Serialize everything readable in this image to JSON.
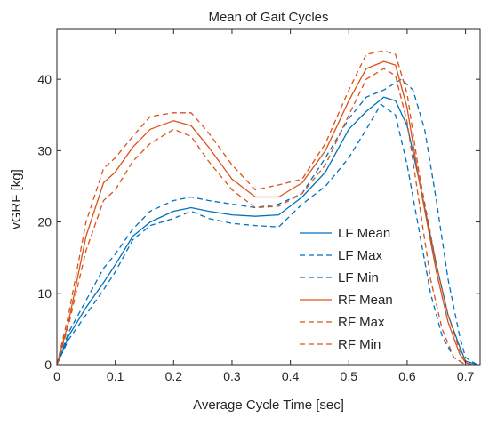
{
  "chart_data": {
    "type": "line",
    "title": "Mean of Gait Cycles",
    "xlabel": "Average Cycle Time [sec]",
    "ylabel": "vGRF [kg]",
    "xlim": [
      0,
      0.725
    ],
    "ylim": [
      0,
      47
    ],
    "xticks": [
      0,
      0.1,
      0.2,
      0.3,
      0.4,
      0.5,
      0.6,
      0.7
    ],
    "xtick_labels": [
      "0",
      "0.1",
      "0.2",
      "0.3",
      "0.4",
      "0.5",
      "0.6",
      "0.7"
    ],
    "yticks": [
      0,
      10,
      20,
      30,
      40
    ],
    "ytick_labels": [
      "0",
      "10",
      "20",
      "30",
      "40"
    ],
    "grid": false,
    "legend_position": "bottom-right",
    "series": [
      {
        "name": "LF Mean",
        "color": "#0072BD",
        "dash": "solid",
        "x": [
          0,
          0.02,
          0.05,
          0.08,
          0.1,
          0.13,
          0.16,
          0.2,
          0.23,
          0.26,
          0.3,
          0.34,
          0.38,
          0.42,
          0.46,
          0.5,
          0.53,
          0.56,
          0.58,
          0.6,
          0.62,
          0.65,
          0.67,
          0.69,
          0.7,
          0.72
        ],
        "y": [
          0,
          4,
          8,
          11.5,
          14,
          18,
          20,
          21.5,
          22,
          21.5,
          21,
          20.8,
          21,
          23.5,
          27,
          33,
          35.5,
          37.5,
          37,
          33.5,
          26,
          14,
          7,
          2.5,
          0.5,
          0
        ]
      },
      {
        "name": "LF Max",
        "color": "#0072BD",
        "dash": "dashed",
        "x": [
          0,
          0.02,
          0.05,
          0.08,
          0.1,
          0.13,
          0.16,
          0.2,
          0.23,
          0.26,
          0.3,
          0.34,
          0.38,
          0.42,
          0.46,
          0.5,
          0.53,
          0.56,
          0.59,
          0.61,
          0.63,
          0.65,
          0.67,
          0.69,
          0.7,
          0.72
        ],
        "y": [
          0,
          4.5,
          9,
          13.5,
          15.5,
          19,
          21.5,
          23,
          23.5,
          23,
          22.5,
          22,
          22.5,
          24,
          29,
          34.5,
          37.5,
          38.5,
          40,
          38.5,
          33,
          23,
          12,
          4,
          1,
          0
        ]
      },
      {
        "name": "LF Min",
        "color": "#0072BD",
        "dash": "dashed",
        "x": [
          0,
          0.02,
          0.05,
          0.08,
          0.1,
          0.13,
          0.16,
          0.2,
          0.23,
          0.26,
          0.3,
          0.34,
          0.38,
          0.42,
          0.46,
          0.5,
          0.53,
          0.555,
          0.58,
          0.6,
          0.62,
          0.64,
          0.66,
          0.68,
          0.7
        ],
        "y": [
          0,
          3.5,
          7,
          10.5,
          13,
          17.5,
          19.5,
          20.5,
          21.5,
          20.5,
          19.8,
          19.5,
          19.3,
          22.5,
          25,
          29,
          33,
          36.5,
          35,
          28,
          19,
          10,
          4,
          1,
          0
        ]
      },
      {
        "name": "RF Mean",
        "color": "#D95319",
        "dash": "solid",
        "x": [
          0,
          0.02,
          0.05,
          0.08,
          0.1,
          0.13,
          0.16,
          0.2,
          0.23,
          0.26,
          0.3,
          0.34,
          0.38,
          0.42,
          0.46,
          0.5,
          0.53,
          0.56,
          0.58,
          0.6,
          0.62,
          0.65,
          0.67,
          0.69,
          0.7,
          0.71
        ],
        "y": [
          0,
          6,
          18,
          25.5,
          27,
          30.5,
          33,
          34.2,
          33.5,
          30.5,
          26,
          23.5,
          23.5,
          25.5,
          30,
          37,
          41.5,
          42.5,
          42,
          36,
          26,
          13,
          6,
          1.5,
          0.3,
          0
        ]
      },
      {
        "name": "RF Max",
        "color": "#D95319",
        "dash": "dashed",
        "x": [
          0,
          0.02,
          0.05,
          0.08,
          0.1,
          0.13,
          0.16,
          0.2,
          0.23,
          0.26,
          0.3,
          0.34,
          0.38,
          0.42,
          0.46,
          0.5,
          0.53,
          0.56,
          0.58,
          0.6,
          0.62,
          0.65,
          0.67,
          0.69,
          0.7,
          0.71
        ],
        "y": [
          0,
          7,
          20,
          27.5,
          29,
          32,
          34.8,
          35.3,
          35.3,
          32.5,
          28,
          24.5,
          25.2,
          26,
          31,
          38.5,
          43.5,
          44,
          43.5,
          38,
          27,
          14,
          7,
          2,
          0.5,
          0
        ]
      },
      {
        "name": "RF Min",
        "color": "#D95319",
        "dash": "dashed",
        "x": [
          0,
          0.02,
          0.05,
          0.08,
          0.1,
          0.13,
          0.16,
          0.2,
          0.23,
          0.26,
          0.3,
          0.34,
          0.38,
          0.42,
          0.46,
          0.5,
          0.53,
          0.56,
          0.58,
          0.6,
          0.62,
          0.64,
          0.66,
          0.68,
          0.7
        ],
        "y": [
          0,
          5.5,
          16,
          23,
          24.5,
          28.5,
          31,
          33,
          32,
          28.5,
          24.5,
          22,
          22.2,
          24,
          28,
          35,
          40,
          41.5,
          40.5,
          34,
          23,
          12,
          5,
          1,
          0
        ]
      }
    ]
  }
}
